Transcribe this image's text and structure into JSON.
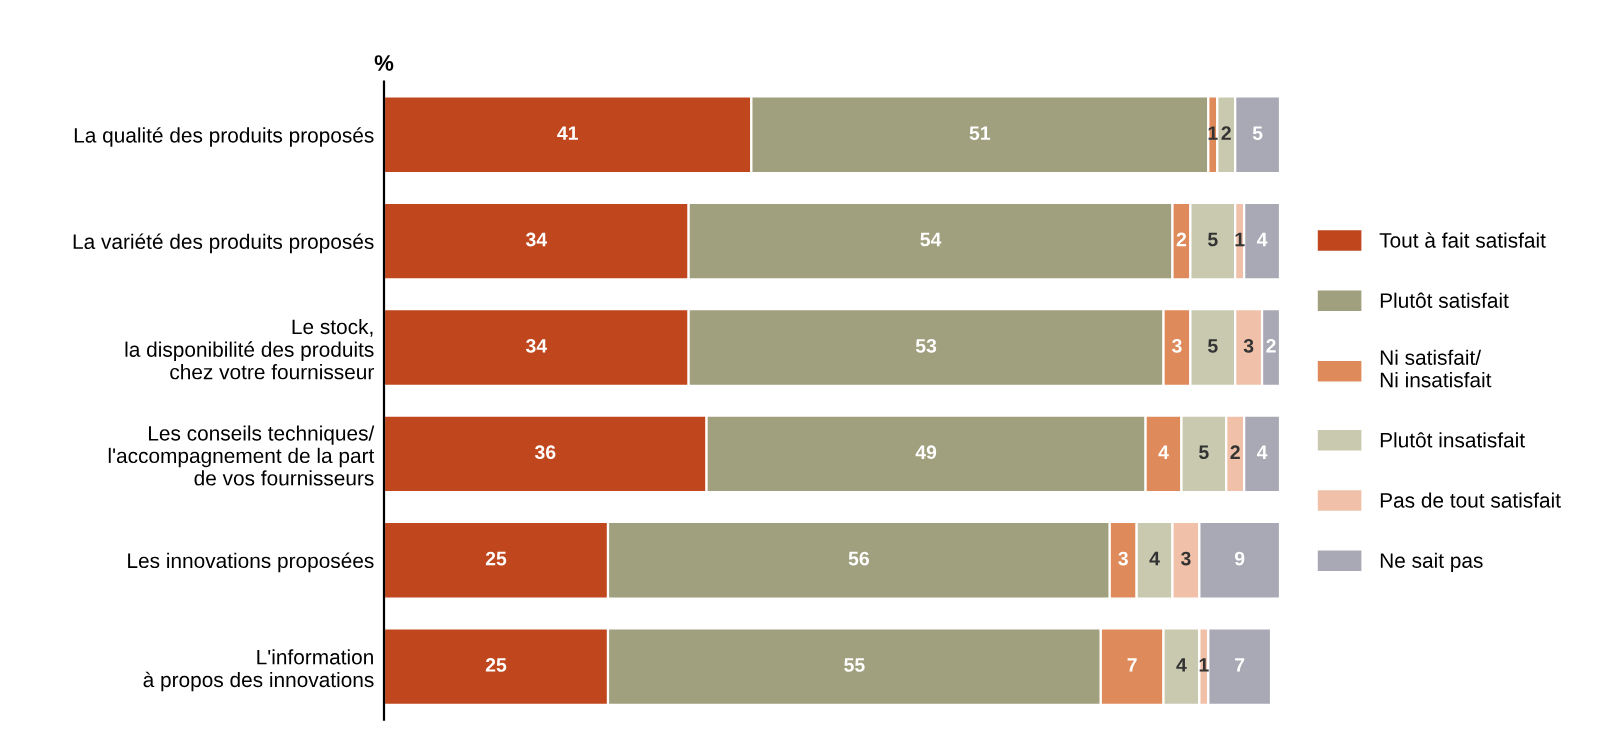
{
  "chart_data": {
    "type": "bar",
    "orientation": "horizontal",
    "stacked": true,
    "categories": [
      "La qualité des produits proposés",
      "La variété des produits proposés",
      "Le stock,\nla disponibilité des produits\nchez votre fournisseur",
      "Les conseils techniques/\nl'accompagnement de la part\nde vos fournisseurs",
      "Les innovations proposées",
      "L'information\nà propos des innovations"
    ],
    "series": [
      {
        "name": "Tout à fait satisfait",
        "color": "#c0461e",
        "values": [
          41,
          34,
          34,
          36,
          25,
          25
        ],
        "value_labels": [
          "41",
          "34",
          "34",
          "36",
          "25",
          "25"
        ]
      },
      {
        "name": "Plutôt satisfait",
        "color": "#a09f7e",
        "values": [
          51,
          54,
          53,
          49,
          56,
          55
        ],
        "value_labels": [
          "51",
          "54",
          "53",
          "49",
          "56",
          "55"
        ]
      },
      {
        "name": "Ni satisfait/\nNi insatisfait",
        "color": "#df8a5a",
        "values": [
          1,
          2,
          3,
          4,
          3,
          7
        ],
        "value_labels": [
          "1",
          "2",
          "3",
          "4",
          "3",
          "7"
        ]
      },
      {
        "name": "Plutôt insatisfait",
        "color": "#c9c9b0",
        "values": [
          2,
          5,
          5,
          5,
          4,
          4
        ],
        "value_labels": [
          "2",
          "5",
          "5",
          "5",
          "4",
          "4"
        ]
      },
      {
        "name": "Pas de tout satisfait",
        "color": "#f0c0a8",
        "values": [
          0,
          1,
          3,
          2,
          3,
          1
        ],
        "value_labels": [
          null,
          "1",
          "3",
          "2",
          "3",
          "1"
        ]
      },
      {
        "name": "Ne sait pas",
        "color": "#a9a9b5",
        "values": [
          5,
          4,
          2,
          4,
          9,
          7
        ],
        "value_labels": [
          "5",
          "4",
          "2",
          "4",
          "9",
          "7"
        ]
      }
    ],
    "xlim": [
      0,
      100
    ],
    "tick_labels": "y",
    "legend": "right",
    "grid": false,
    "annotations": [
      "%"
    ]
  }
}
